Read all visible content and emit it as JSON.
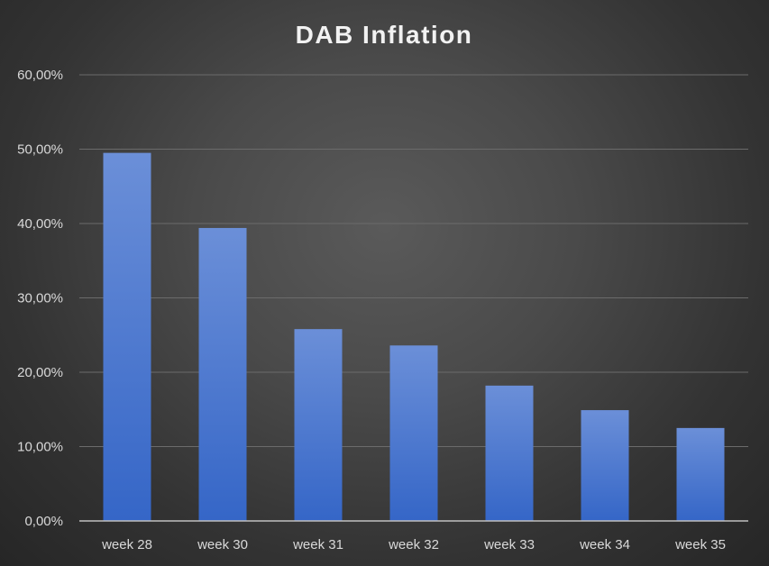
{
  "chart_data": {
    "type": "bar",
    "title": "DAB Inflation",
    "xlabel": "",
    "ylabel": "",
    "categories": [
      "week 28",
      "week 30",
      "week 31",
      "week 32",
      "week 33",
      "week 34",
      "week 35"
    ],
    "values": [
      49.5,
      39.4,
      25.8,
      23.6,
      18.2,
      14.9,
      12.5
    ],
    "ylim": [
      0,
      60
    ],
    "yticks": [
      "0,00%",
      "10,00%",
      "20,00%",
      "30,00%",
      "40,00%",
      "50,00%",
      "60,00%"
    ],
    "grid": true,
    "legend": "none",
    "colors": {
      "bar_top": "#6b8fd8",
      "bar_bottom": "#3566c7",
      "background": "#454545"
    }
  }
}
